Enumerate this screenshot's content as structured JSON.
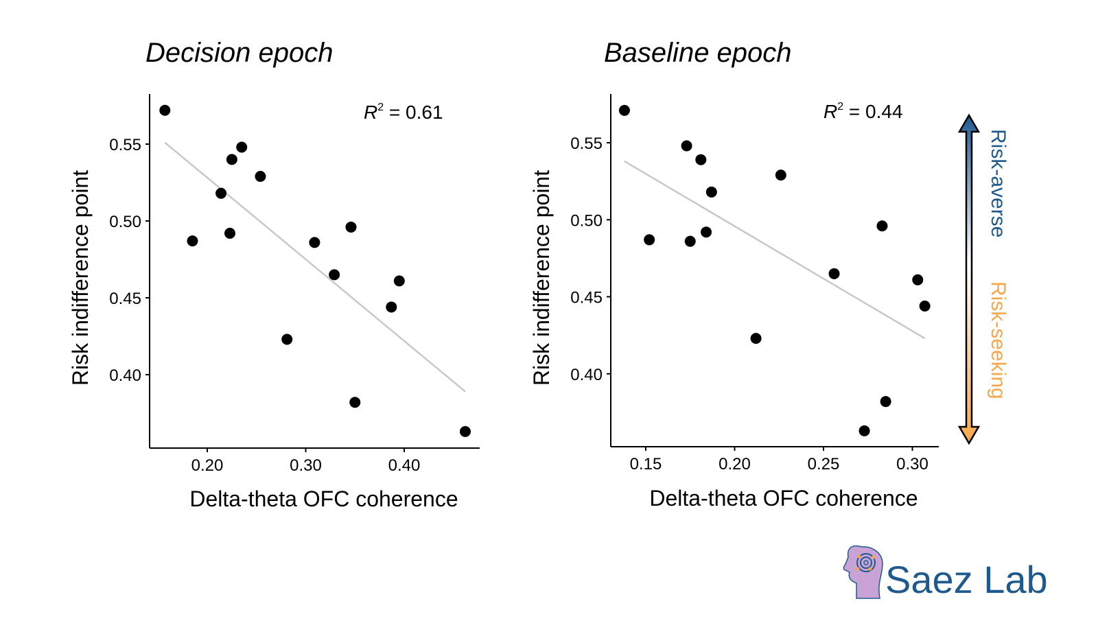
{
  "colors": {
    "points": "#000000",
    "fit_line": "#c8c8c8",
    "risk_averse": "#1f5a8f",
    "risk_seeking": "#f7a64a",
    "logo_text": "#1f5a8f",
    "logo_head": "#c9a3d6"
  },
  "chart_data": [
    {
      "type": "scatter",
      "title": "Decision epoch",
      "xlabel": "Delta-theta OFC coherence",
      "ylabel": "Risk indifference point",
      "annotation": {
        "label": "R",
        "sup": "2",
        "value": " = 0.61"
      },
      "xticks": [
        "0.20",
        "0.30",
        "0.40"
      ],
      "yticks": [
        "0.40",
        "0.45",
        "0.50",
        "0.55"
      ],
      "xlim": [
        0.145,
        0.475
      ],
      "ylim": [
        0.355,
        0.58
      ],
      "grid": false,
      "x": [
        0.157,
        0.185,
        0.214,
        0.223,
        0.225,
        0.235,
        0.254,
        0.281,
        0.309,
        0.329,
        0.346,
        0.387,
        0.395,
        0.35,
        0.462
      ],
      "y": [
        0.572,
        0.487,
        0.518,
        0.492,
        0.54,
        0.548,
        0.529,
        0.423,
        0.486,
        0.465,
        0.496,
        0.444,
        0.461,
        0.382,
        0.363
      ],
      "fit": {
        "x": [
          0.157,
          0.462
        ],
        "y": [
          0.551,
          0.389
        ]
      }
    },
    {
      "type": "scatter",
      "title": "Baseline epoch",
      "xlabel": "Delta-theta OFC coherence",
      "ylabel": "Risk indifference point",
      "annotation": {
        "label": "R",
        "sup": "2",
        "value": " = 0.44"
      },
      "xticks": [
        "0.15",
        "0.20",
        "0.25",
        "0.30"
      ],
      "yticks": [
        "0.40",
        "0.45",
        "0.50",
        "0.55"
      ],
      "xlim": [
        0.13,
        0.315
      ],
      "ylim": [
        0.355,
        0.58
      ],
      "grid": false,
      "x": [
        0.138,
        0.152,
        0.173,
        0.175,
        0.181,
        0.184,
        0.187,
        0.212,
        0.226,
        0.256,
        0.283,
        0.303,
        0.307,
        0.285,
        0.273
      ],
      "y": [
        0.571,
        0.487,
        0.548,
        0.486,
        0.539,
        0.492,
        0.518,
        0.423,
        0.529,
        0.465,
        0.496,
        0.461,
        0.444,
        0.382,
        0.363
      ],
      "fit": {
        "x": [
          0.138,
          0.307
        ],
        "y": [
          0.538,
          0.423
        ]
      }
    }
  ],
  "legend_arrow": {
    "top_label": "Risk-averse",
    "bottom_label": "Risk-seeking"
  },
  "logo": {
    "text": "Saez Lab"
  }
}
